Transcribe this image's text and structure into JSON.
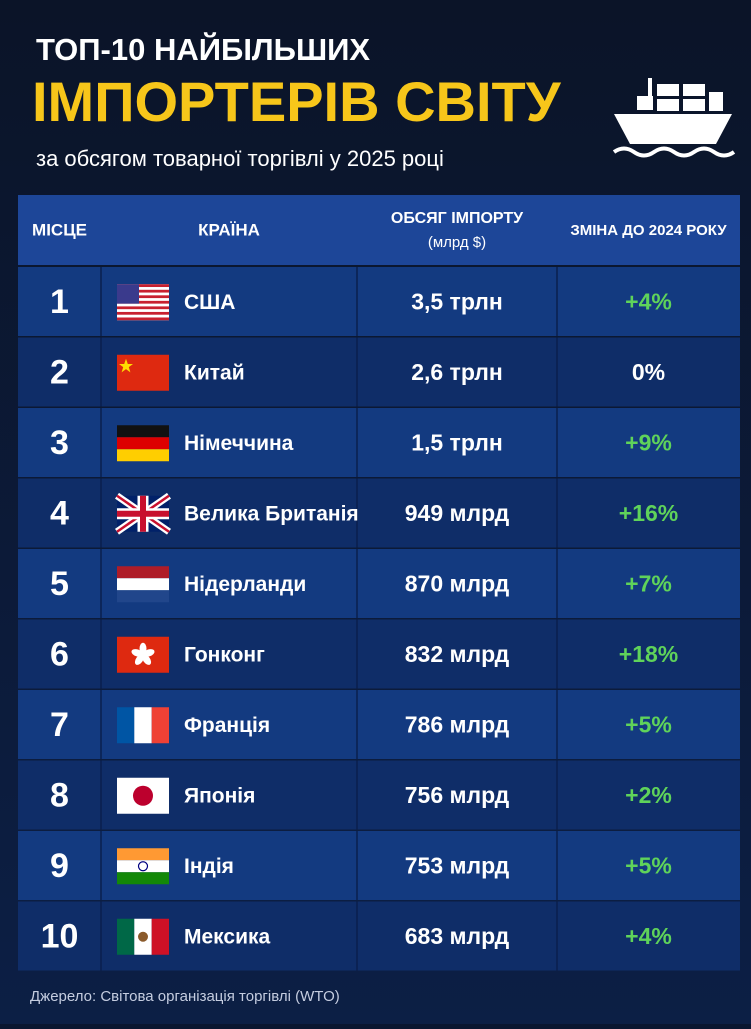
{
  "header": {
    "title_line1": "ТОП-10 НАЙБІЛЬШИХ",
    "title_line2": "ІМПОРТЕРІВ СВІТУ",
    "subtitle": "за обсягом товарної торгівлі у 2025 році"
  },
  "table": {
    "columns": [
      {
        "label": "МІСЦЕ"
      },
      {
        "label": "КРАЇНА"
      },
      {
        "label": "ОБСЯГ ІМПОРТУ",
        "unit": "(млрд $)"
      },
      {
        "label": "ЗМІНА ДО 2024 РОКУ"
      }
    ],
    "rows": [
      [
        "1",
        "США",
        "3,5 трлн",
        "+4%"
      ],
      [
        "2",
        "Китай",
        "2,6 трлн",
        "0%"
      ],
      [
        "3",
        "Німеччина",
        "1,5 трлн",
        "+9%"
      ],
      [
        "4",
        "Велика Британія",
        "949 млрд",
        "+16%"
      ],
      [
        "5",
        "Нідерланди",
        "870 млрд",
        "+7%"
      ],
      [
        "6",
        "Гонконг",
        "832 млрд",
        "+18%"
      ],
      [
        "7",
        "Франція",
        "786 млрд",
        "+5%"
      ],
      [
        "8",
        "Японія",
        "756 млрд",
        "+2%"
      ],
      [
        "9",
        "Індія",
        "753 млрд",
        "+5%"
      ],
      [
        "10",
        "Мексика",
        "683 млрд",
        "+4%"
      ]
    ]
  },
  "source": "Джерело: Світова організація торгівлі (WTO)"
}
